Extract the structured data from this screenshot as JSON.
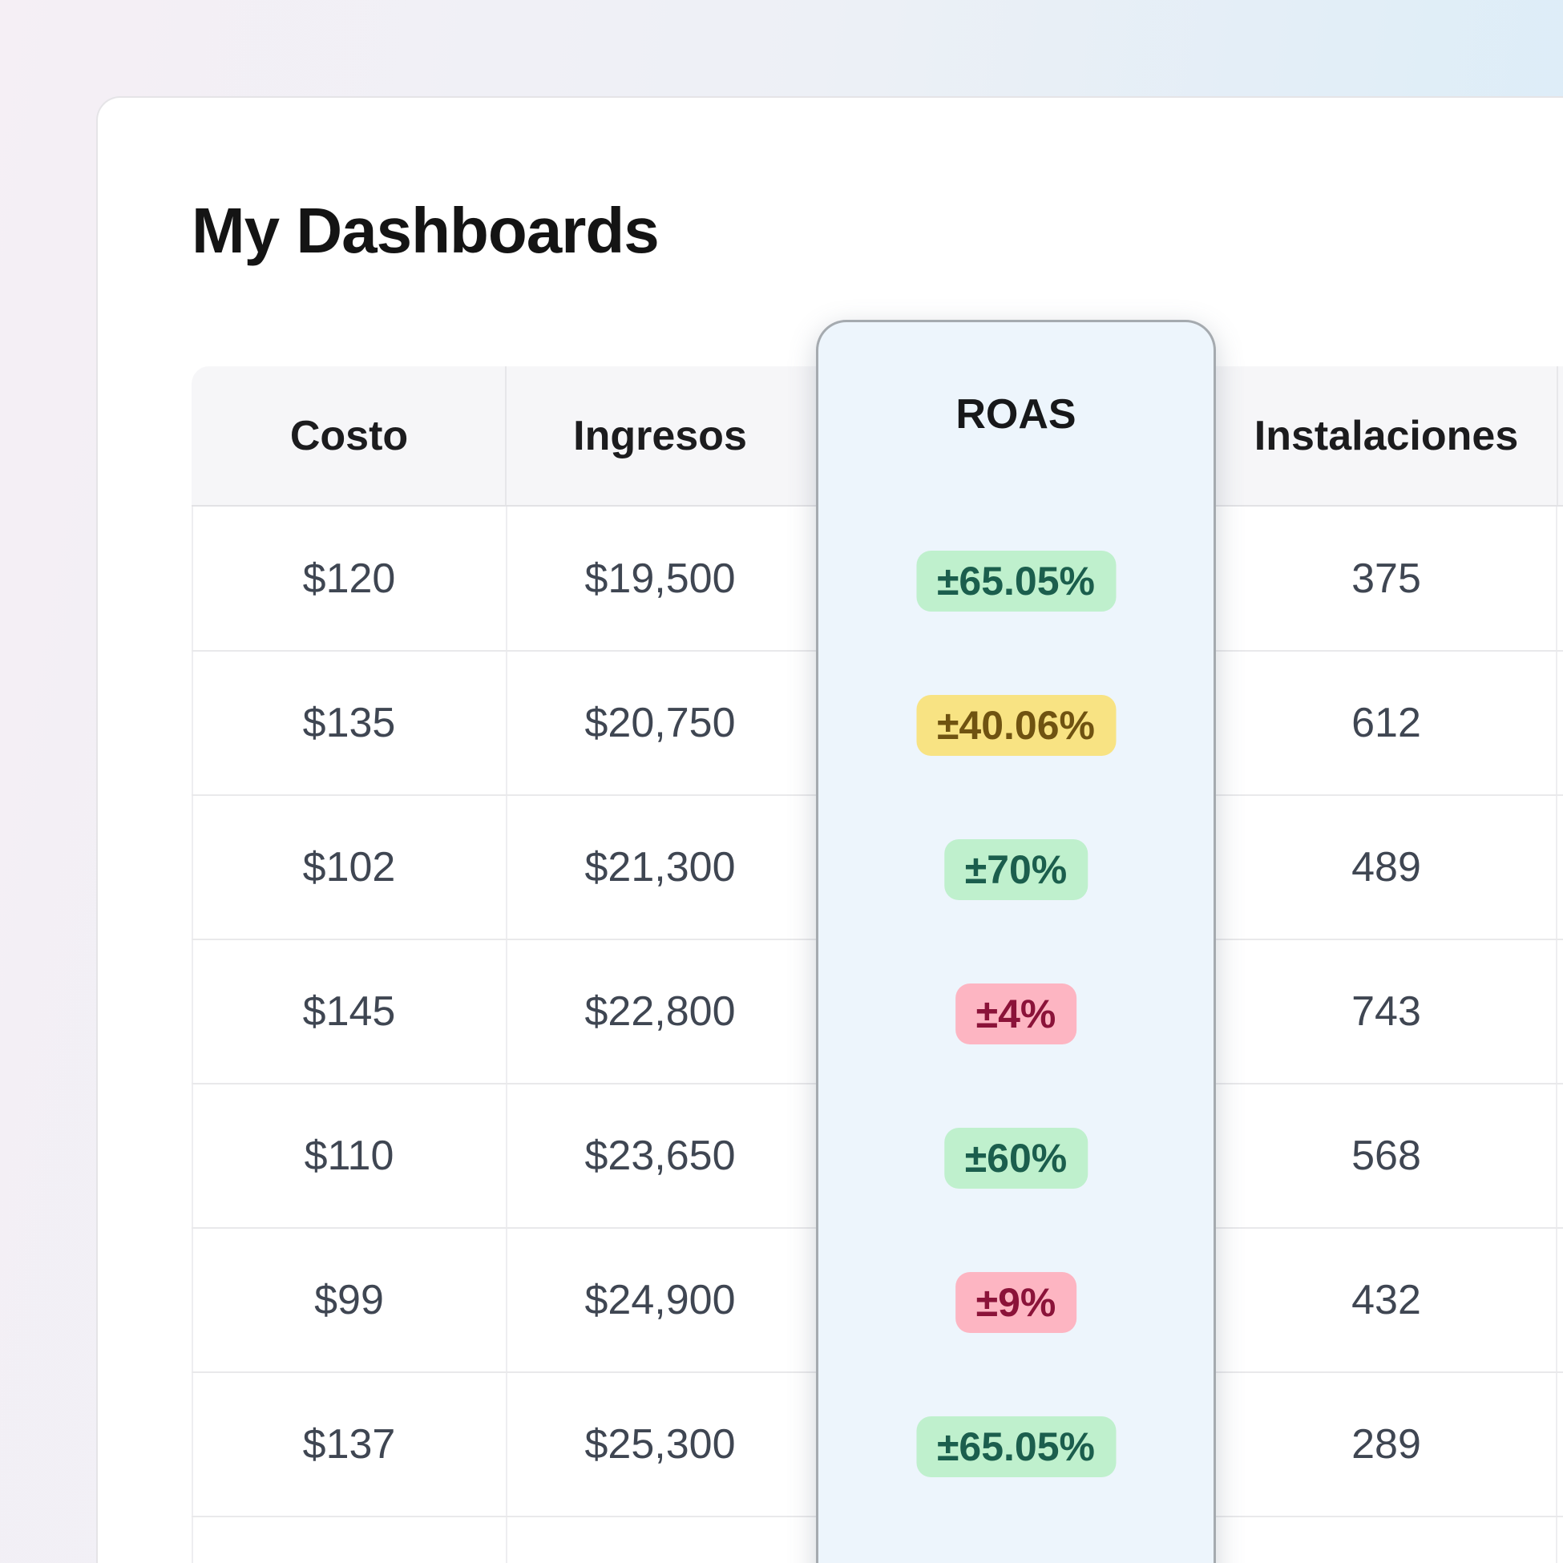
{
  "page": {
    "title": "My Dashboards"
  },
  "table": {
    "columns": [
      "Costo",
      "Ingresos",
      "ROAS",
      "Instalaciones"
    ],
    "rows": [
      {
        "costo": "$120",
        "ingresos": "$19,500",
        "roas": "±65.05%",
        "roas_level": "green",
        "instalaciones": "375"
      },
      {
        "costo": "$135",
        "ingresos": "$20,750",
        "roas": "±40.06%",
        "roas_level": "yellow",
        "instalaciones": "612"
      },
      {
        "costo": "$102",
        "ingresos": "$21,300",
        "roas": "±70%",
        "roas_level": "green",
        "instalaciones": "489"
      },
      {
        "costo": "$145",
        "ingresos": "$22,800",
        "roas": "±4%",
        "roas_level": "red",
        "instalaciones": "743"
      },
      {
        "costo": "$110",
        "ingresos": "$23,650",
        "roas": "±60%",
        "roas_level": "green",
        "instalaciones": "568"
      },
      {
        "costo": "$99",
        "ingresos": "$24,900",
        "roas": "±9%",
        "roas_level": "red",
        "instalaciones": "432"
      },
      {
        "costo": "$137",
        "ingresos": "$25,300",
        "roas": "±65.05%",
        "roas_level": "green",
        "instalaciones": "289"
      }
    ]
  },
  "colors": {
    "accent_column_bg": "#edf5fc",
    "accent_column_border": "#a5aaaf",
    "badge_green_bg": "#bff0cd",
    "badge_green_text": "#1b5e4d",
    "badge_yellow_bg": "#f8e383",
    "badge_yellow_text": "#6f5311",
    "badge_red_bg": "#fdb5c2",
    "badge_red_text": "#8b1339"
  }
}
